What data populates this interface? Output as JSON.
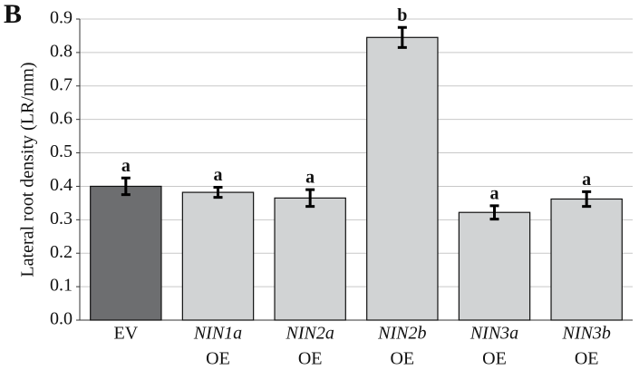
{
  "chart_data": {
    "type": "bar",
    "panel_label": "B",
    "ylabel": "Lateral root density (LR/mm)",
    "categories": [
      [
        "EV"
      ],
      [
        "NIN1a",
        "OE"
      ],
      [
        "NIN2a",
        "OE"
      ],
      [
        "NIN2b",
        "OE"
      ],
      [
        "NIN3a",
        "OE"
      ],
      [
        "NIN3b",
        "OE"
      ]
    ],
    "values": [
      0.4,
      0.382,
      0.365,
      0.845,
      0.322,
      0.362
    ],
    "errors": [
      0.025,
      0.015,
      0.025,
      0.03,
      0.02,
      0.022
    ],
    "letters": [
      "a",
      "a",
      "a",
      "b",
      "a",
      "a"
    ],
    "colors": [
      "#6d6e70",
      "#d1d3d4",
      "#d1d3d4",
      "#d1d3d4",
      "#d1d3d4",
      "#d1d3d4"
    ],
    "ylim": [
      0,
      0.9
    ],
    "yticks": [
      {
        "value": 0,
        "label": "0.0"
      },
      0.1,
      0.2,
      0.3,
      0.4,
      0.5,
      0.6,
      0.7,
      0.8,
      0.9
    ],
    "grid": true
  }
}
